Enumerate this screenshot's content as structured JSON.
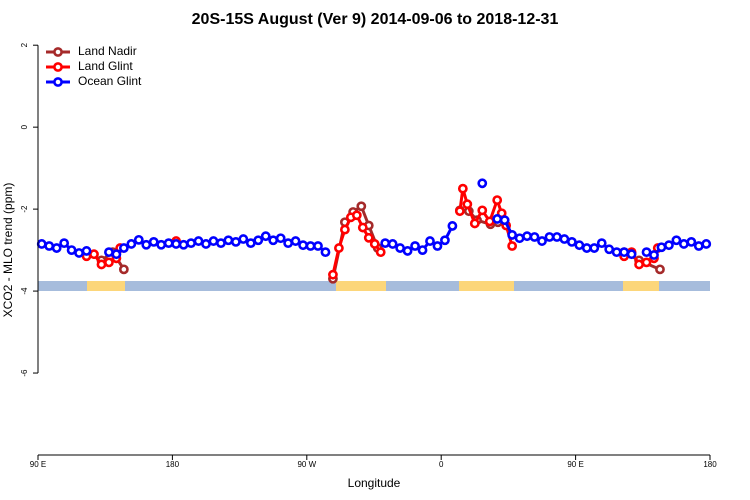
{
  "chart_data": {
    "type": "line",
    "title": "20S-15S August (Ver 9)   2014-09-06 to 2018-12-31",
    "x_label": "Longitude",
    "y_label": "XCO2 - MLO trend (ppm)",
    "xlim": [
      90,
      540
    ],
    "xticks": [
      {
        "value": 90,
        "label": "90 E"
      },
      {
        "value": 180,
        "label": "180"
      },
      {
        "value": 270,
        "label": "90 W"
      },
      {
        "value": 360,
        "label": "0"
      },
      {
        "value": 450,
        "label": "90 E"
      },
      {
        "value": 540,
        "label": "180"
      }
    ],
    "ylim": [
      -8,
      2.2
    ],
    "yticks": [
      2,
      0,
      -2,
      -4,
      -6
    ],
    "legend": "top-left",
    "series": [
      {
        "name": "Land Nadir",
        "color": "#a52a2a",
        "x": [
          122.5,
          132.5,
          140,
          147.5,
          200,
          287.5,
          295.5,
          301,
          306.5,
          311.5,
          317.5,
          345,
          372.5,
          378.5,
          384,
          393,
          398,
          440,
          482.5,
          492.5,
          506.5
        ],
        "values": [
          -3.05,
          -3.25,
          -3.05,
          -3.47,
          null,
          -3.7,
          -2.32,
          -2.07,
          -1.93,
          -2.4,
          -2.95,
          null,
          -2.03,
          -2.05,
          -2.27,
          -2.37,
          -2.32,
          null,
          -3.05,
          -3.25,
          -3.47
        ]
      },
      {
        "name": "Land Glint",
        "color": "#ff0000",
        "x": [
          122.5,
          127.5,
          132.5,
          137.5,
          142.5,
          145,
          160,
          182.5,
          250,
          287.5,
          291.5,
          295.5,
          299.5,
          303.5,
          307.5,
          311.5,
          315.5,
          319.5,
          345,
          372.5,
          374.5,
          377.5,
          382.5,
          387.5,
          392.5,
          397.5,
          400.5,
          403.5,
          407.5,
          440,
          482.5,
          487.5,
          492.5,
          497.5,
          502.5,
          505
        ],
        "values": [
          -3.15,
          -3.1,
          -3.35,
          -3.3,
          -3.2,
          -2.95,
          null,
          -2.78,
          null,
          -3.6,
          -2.95,
          -2.5,
          -2.2,
          -2.15,
          -2.45,
          -2.7,
          -2.85,
          -3.05,
          null,
          -2.05,
          -1.5,
          -1.88,
          -2.35,
          -2.03,
          -2.3,
          -1.78,
          -2.1,
          -2.4,
          -2.9,
          null,
          -3.15,
          -3.05,
          -3.35,
          -3.3,
          -3.2,
          -2.95
        ]
      },
      {
        "name": "Ocean Glint",
        "color": "#0000ff",
        "x": [
          92.5,
          97.5,
          102.5,
          107.5,
          112.5,
          117.5,
          122.5,
          130,
          137.5,
          142.5,
          147.5,
          152.5,
          157.5,
          162.5,
          167.5,
          172.5,
          177.5,
          182.5,
          187.5,
          192.5,
          197.5,
          202.5,
          207.5,
          212.5,
          217.5,
          222.5,
          227.5,
          232.5,
          237.5,
          242.5,
          247.5,
          252.5,
          257.5,
          262.5,
          267.5,
          272.5,
          277.5,
          282.5,
          300,
          322.5,
          327.5,
          332.5,
          337.5,
          342.5,
          347.5,
          352.5,
          357.5,
          362.5,
          367.5,
          377.5,
          387.5,
          392.5,
          397.5,
          402.5,
          407.5,
          412.5,
          417.5,
          422.5,
          427.5,
          432.5,
          437.5,
          442.5,
          447.5,
          452.5,
          457.5,
          462.5,
          467.5,
          472.5,
          477.5,
          482.5,
          487.5,
          492.5,
          497.5,
          502.5,
          507.5,
          512.5,
          517.5,
          522.5,
          527.5,
          532.5,
          537.5
        ],
        "values": [
          -2.85,
          -2.9,
          -2.95,
          -2.83,
          -3.0,
          -3.07,
          -3.02,
          null,
          -3.05,
          -3.1,
          -2.95,
          -2.85,
          -2.75,
          -2.87,
          -2.8,
          -2.87,
          -2.83,
          -2.85,
          -2.87,
          -2.83,
          -2.78,
          -2.85,
          -2.78,
          -2.83,
          -2.76,
          -2.8,
          -2.73,
          -2.83,
          -2.76,
          -2.66,
          -2.76,
          -2.71,
          -2.83,
          -2.78,
          -2.88,
          -2.9,
          -2.9,
          -3.05,
          null,
          -2.83,
          -2.85,
          -2.95,
          -3.02,
          -2.9,
          -3.0,
          -2.78,
          -2.9,
          -2.76,
          -2.41,
          null,
          -1.37,
          null,
          -2.24,
          -2.27,
          -2.63,
          -2.71,
          -2.66,
          -2.68,
          -2.78,
          -2.68,
          -2.68,
          -2.73,
          -2.8,
          -2.88,
          -2.95,
          -2.95,
          -2.83,
          -2.98,
          -3.05,
          -3.05,
          -3.1,
          null,
          -3.05,
          -3.12,
          -2.93,
          -2.88,
          -2.76,
          -2.85,
          -2.8,
          -2.9,
          -2.85
        ]
      }
    ]
  }
}
